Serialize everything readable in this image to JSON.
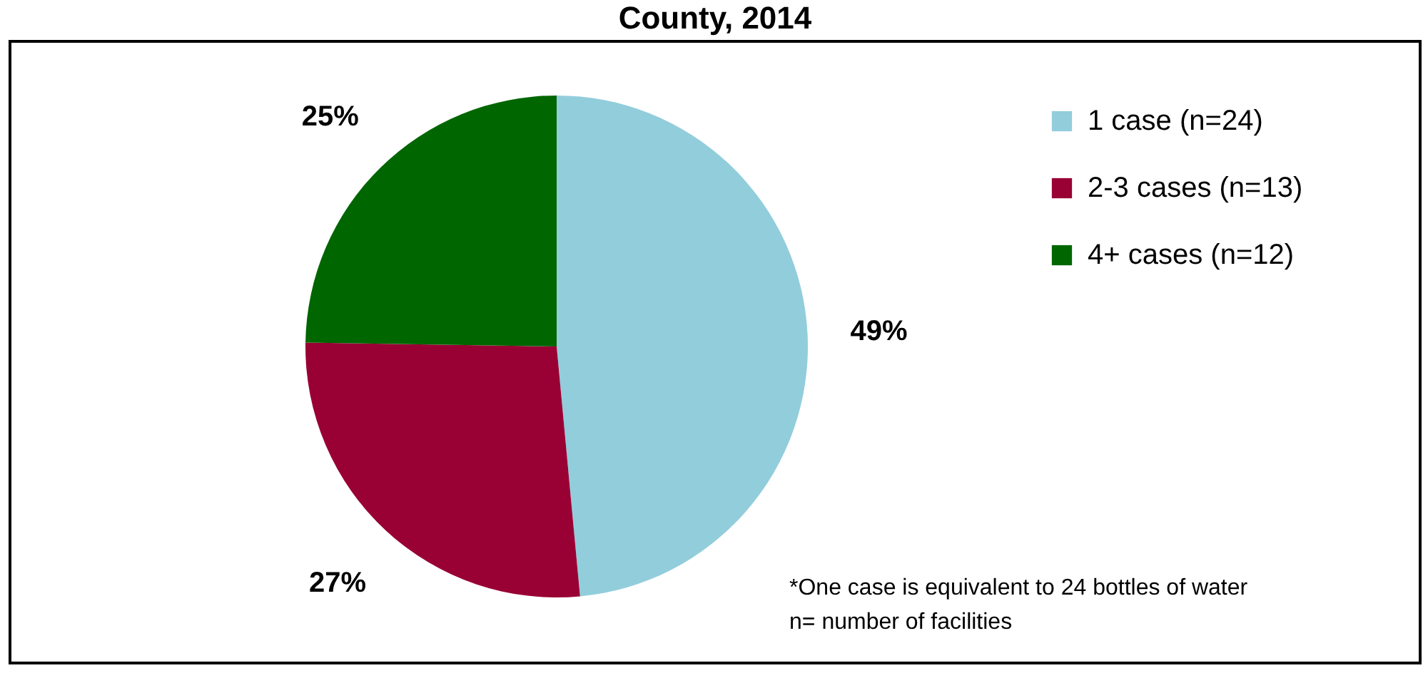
{
  "chart_data": {
    "type": "pie",
    "title": "County, 2014",
    "categories": [
      "1 case (n=24)",
      "2-3 cases (n=13)",
      "4+ cases (n=12)"
    ],
    "values": [
      49,
      27,
      25
    ],
    "value_labels": [
      "49%",
      "27%",
      "25%"
    ],
    "colors": [
      "#92cddc",
      "#990033",
      "#006600"
    ],
    "legend": "top right",
    "annotations": [
      "*One case is equivalent to 24 bottles of water",
      "n= number of facilities"
    ]
  }
}
